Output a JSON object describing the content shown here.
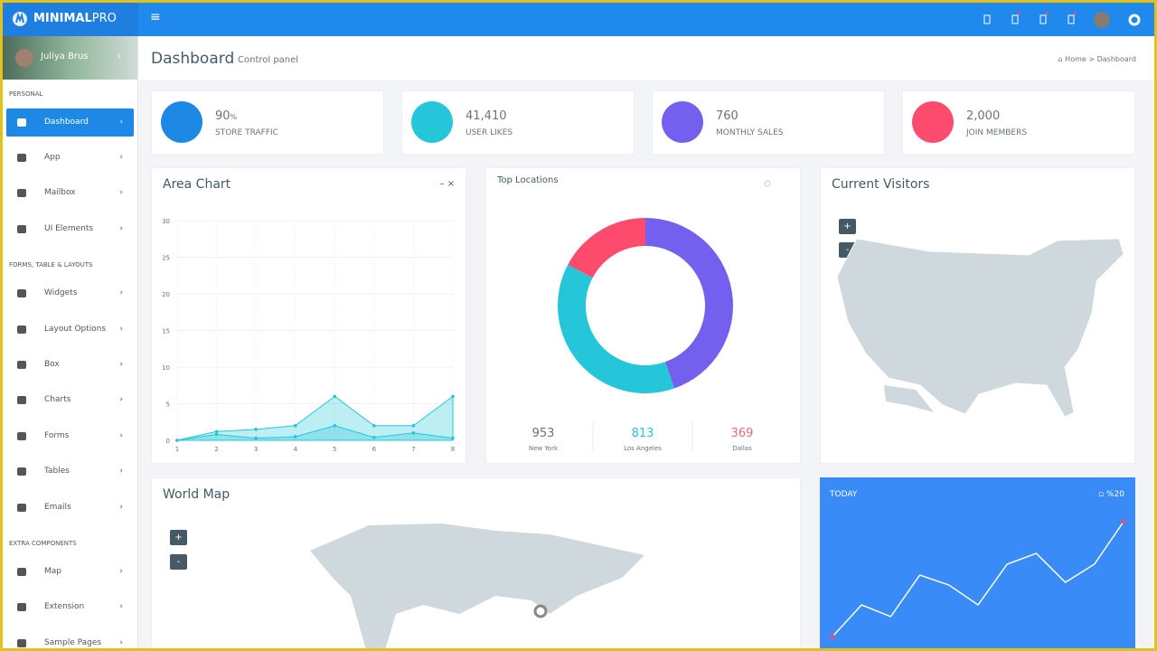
{
  "header": {
    "brand": "MINIMAL",
    "brand_suffix": "PRO"
  },
  "sidebar": {
    "user": "Juliya Brus",
    "sections": [
      {
        "title": "PERSONAL",
        "items": [
          "Dashboard",
          "App",
          "Mailbox",
          "UI Elements"
        ]
      },
      {
        "title": "FORMS, TABLE & LAYOUTS",
        "items": [
          "Widgets",
          "Layout Options",
          "Box",
          "Charts",
          "Forms",
          "Tables",
          "Emails"
        ]
      },
      {
        "title": "EXTRA COMPONENTS",
        "items": [
          "Map",
          "Extension",
          "Sample Pages"
        ]
      }
    ],
    "active": "Dashboard"
  },
  "page": {
    "title": "Dashboard",
    "subtitle": "Control panel",
    "breadcrumb": [
      "Home",
      "Dashboard"
    ]
  },
  "stats": [
    {
      "value": "90",
      "unit": "%",
      "label": "STORE TRAFFIC",
      "color": "#1e88e5"
    },
    {
      "value": "41,410",
      "label": "USER LIKES",
      "color": "#26c6da"
    },
    {
      "value": "760",
      "label": "MONTHLY SALES",
      "color": "#7460ee"
    },
    {
      "value": "2,000",
      "label": "JOIN MEMBERS",
      "color": "#fc4b6c"
    }
  ],
  "area_chart": {
    "type": "area",
    "title": "Area Chart",
    "x": [
      1,
      2,
      3,
      4,
      5,
      6,
      7,
      8
    ],
    "xlim": [
      1,
      8
    ],
    "xticks": [
      1,
      2,
      3,
      4,
      5,
      6,
      7,
      8
    ],
    "ylim": [
      0,
      30
    ],
    "yticks": [
      0,
      5,
      10,
      15,
      20,
      25,
      30
    ],
    "grid": true,
    "series": [
      {
        "color": "#26c6da",
        "values": [
          0,
          1.2,
          1.5,
          2,
          6,
          2,
          2,
          6
        ]
      },
      {
        "color": "#26c6da",
        "values": [
          0,
          0.8,
          0.3,
          0.5,
          2,
          0.4,
          1,
          0.3
        ]
      }
    ]
  },
  "donut": {
    "type": "donut",
    "title": "Top Locations",
    "categories": [
      "New York",
      "Los Angeles",
      "Dallas"
    ],
    "values": [
      953,
      813,
      369
    ],
    "colors": [
      "#7460ee",
      "#26c6da",
      "#fc4b6c"
    ],
    "label_colors": [
      "#67757c",
      "#26c6da",
      "#e46a76"
    ]
  },
  "visitors": {
    "title": "Current Visitors"
  },
  "world_map": {
    "title": "World Map"
  },
  "today": {
    "type": "line",
    "label": "TODAY",
    "badge": "%20",
    "color": "#ffffff",
    "values": [
      0,
      35,
      22,
      68,
      57,
      35,
      80,
      92,
      60,
      80,
      127
    ]
  }
}
